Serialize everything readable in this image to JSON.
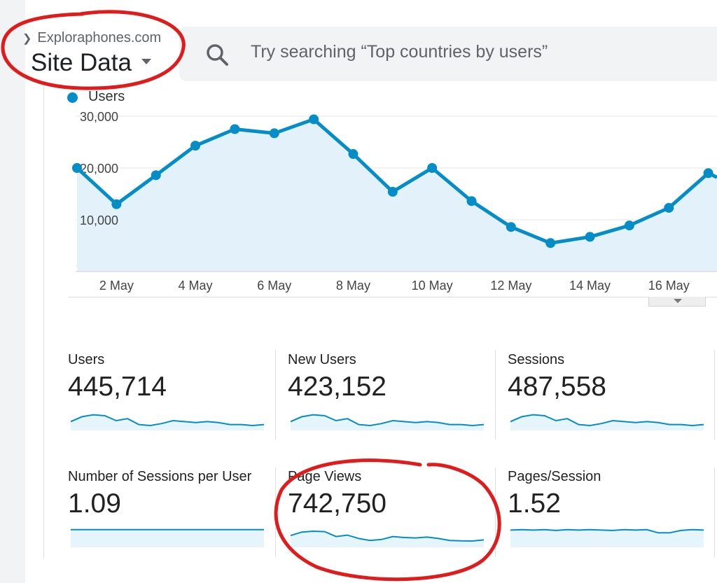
{
  "header": {
    "breadcrumb": "Exploraphones.com",
    "title": "Site Data"
  },
  "search": {
    "placeholder": "Try searching “Top countries by users”"
  },
  "chart_data": {
    "type": "area",
    "legend": [
      "Users"
    ],
    "legend_position": "top-left",
    "x": [
      "1 May",
      "2 May",
      "3 May",
      "4 May",
      "5 May",
      "6 May",
      "7 May",
      "8 May",
      "9 May",
      "10 May",
      "11 May",
      "12 May",
      "13 May",
      "14 May",
      "15 May",
      "16 May",
      "17 May"
    ],
    "x_tick_labels": [
      "2 May",
      "4 May",
      "6 May",
      "8 May",
      "10 May",
      "12 May",
      "14 May",
      "16 May"
    ],
    "y_tick_labels": [
      "10,000",
      "20,000",
      "30,000"
    ],
    "ylim": [
      0,
      30000
    ],
    "grid": true,
    "series": [
      {
        "name": "Users",
        "color": "#058dc7",
        "values": [
          20000,
          13000,
          18600,
          24300,
          27500,
          26700,
          29400,
          22700,
          15400,
          20000,
          13600,
          8600,
          5500,
          6700,
          8900,
          12300,
          19000
        ]
      }
    ]
  },
  "scorecards": [
    {
      "label": "Users",
      "value": "445,714",
      "spark": [
        0.45,
        0.7,
        0.8,
        0.75,
        0.5,
        0.6,
        0.3,
        0.25,
        0.35,
        0.5,
        0.45,
        0.4,
        0.45,
        0.4,
        0.3,
        0.3,
        0.25,
        0.3
      ]
    },
    {
      "label": "New Users",
      "value": "423,152",
      "spark": [
        0.45,
        0.7,
        0.8,
        0.75,
        0.5,
        0.6,
        0.3,
        0.25,
        0.35,
        0.5,
        0.45,
        0.4,
        0.45,
        0.4,
        0.3,
        0.3,
        0.25,
        0.3
      ]
    },
    {
      "label": "Sessions",
      "value": "487,558",
      "spark": [
        0.45,
        0.7,
        0.8,
        0.75,
        0.5,
        0.6,
        0.3,
        0.25,
        0.35,
        0.5,
        0.45,
        0.4,
        0.45,
        0.4,
        0.3,
        0.3,
        0.25,
        0.3
      ]
    },
    {
      "label": "Number of Sessions per User",
      "value": "1.09",
      "spark": [
        0.9,
        0.9,
        0.9,
        0.9,
        0.9,
        0.9,
        0.9,
        0.9,
        0.9,
        0.9,
        0.9,
        0.9,
        0.9,
        0.9,
        0.9,
        0.9,
        0.9,
        0.9
      ]
    },
    {
      "label": "Page Views",
      "value": "742,750",
      "spark": [
        0.6,
        0.78,
        0.82,
        0.8,
        0.55,
        0.62,
        0.45,
        0.35,
        0.4,
        0.55,
        0.5,
        0.48,
        0.52,
        0.45,
        0.35,
        0.33,
        0.32,
        0.38
      ]
    },
    {
      "label": "Pages/Session",
      "value": "1.52",
      "spark": [
        0.88,
        0.9,
        0.88,
        0.9,
        0.86,
        0.9,
        0.88,
        0.9,
        0.88,
        0.86,
        0.9,
        0.88,
        0.9,
        0.74,
        0.74,
        0.86,
        0.9,
        0.88
      ]
    }
  ],
  "colors": {
    "line": "#058dc7",
    "area_fill": "#e3f2fa",
    "spark_fill": "#e6f4fb",
    "annotation": "#e01b1b"
  },
  "annotations": [
    "red-circle-site-data",
    "red-circle-page-views"
  ]
}
